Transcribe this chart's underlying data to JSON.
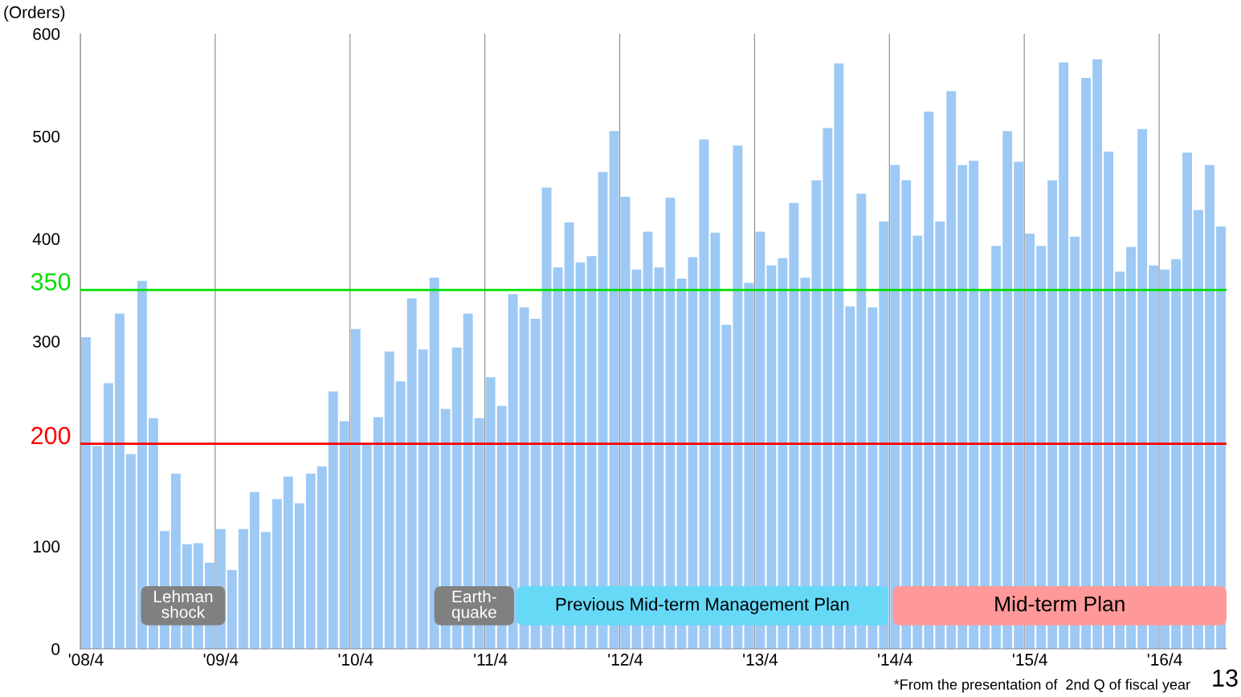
{
  "chart_data": {
    "type": "bar",
    "ylabel": "(Orders)",
    "categories": [
      "'08/4",
      null,
      null,
      null,
      null,
      null,
      null,
      null,
      null,
      null,
      null,
      null,
      "'09/4",
      null,
      null,
      null,
      null,
      null,
      null,
      null,
      null,
      null,
      null,
      null,
      "'10/4",
      null,
      null,
      null,
      null,
      null,
      null,
      null,
      null,
      null,
      null,
      null,
      "'11/4",
      null,
      null,
      null,
      null,
      null,
      null,
      null,
      null,
      null,
      null,
      null,
      "'12/4",
      null,
      null,
      null,
      null,
      null,
      null,
      null,
      null,
      null,
      null,
      null,
      "'13/4",
      null,
      null,
      null,
      null,
      null,
      null,
      null,
      null,
      null,
      null,
      null,
      "'14/4",
      null,
      null,
      null,
      null,
      null,
      null,
      null,
      null,
      null,
      null,
      null,
      "'15/4",
      null,
      null,
      null,
      null,
      null,
      null,
      null,
      null,
      null,
      null,
      null,
      "'16/4",
      null,
      null,
      null,
      null,
      null
    ],
    "values": [
      304,
      198,
      259,
      327,
      190,
      359,
      225,
      115,
      171,
      102,
      103,
      84,
      117,
      77,
      117,
      153,
      114,
      146,
      168,
      142,
      171,
      178,
      251,
      222,
      312,
      200,
      226,
      290,
      261,
      342,
      292,
      362,
      234,
      294,
      327,
      225,
      265,
      237,
      346,
      333,
      322,
      450,
      372,
      416,
      377,
      383,
      465,
      505,
      441,
      370,
      407,
      372,
      440,
      361,
      382,
      497,
      406,
      316,
      491,
      357,
      407,
      374,
      381,
      435,
      362,
      457,
      508,
      571,
      334,
      444,
      333,
      417,
      472,
      457,
      403,
      524,
      417,
      544,
      472,
      476,
      350,
      393,
      505,
      475,
      405,
      393,
      457,
      572,
      402,
      557,
      575,
      485,
      368,
      392,
      507,
      374,
      370,
      380,
      484,
      428,
      472,
      412
    ],
    "color": "#9dc9f4",
    "ylim": [
      0,
      600
    ],
    "yticks": [
      0,
      100,
      300,
      400,
      500,
      600
    ],
    "grid": "x",
    "ref_lines": [
      {
        "axis": "y",
        "value": 350,
        "label": "350",
        "color": "#00dd00",
        "line_style": "solid"
      },
      {
        "axis": "y",
        "value": 200,
        "label": "200",
        "color": "#ff0000",
        "line_style": "solid"
      }
    ],
    "annotations": [
      "Lehman\nshock",
      "Earth-\nquake",
      "Previous Mid-term Management Plan",
      "Mid-term Plan",
      "*From the presentation of  2nd Q of fiscal year",
      "13"
    ]
  }
}
